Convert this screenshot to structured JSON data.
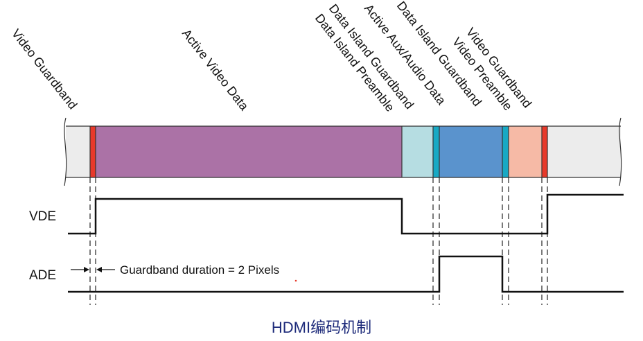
{
  "labels": {
    "video_guardband_left": "Video Guardband",
    "active_video_data": "Active Video Data",
    "data_island_preamble": "Data Island Preamble",
    "data_island_guardband_1": "Data Island Guardband",
    "active_aux_audio_data": "Active Aux/Audio Data",
    "data_island_guardband_2": "Data Island Guardband",
    "video_preamble": "Video Preamble",
    "video_guardband_right": "Video Guardband"
  },
  "signals": {
    "vde": "VDE",
    "ade": "ADE"
  },
  "annotation": "Guardband duration = 2 Pixels",
  "caption": "HDMI编码机制",
  "colors": {
    "guardband": "#e8392a",
    "active_video": "#ab72a6",
    "data_island_preamble": "#b6dde2",
    "data_island_guardband": "#17a9c4",
    "aux_audio": "#5a93cd",
    "video_preamble": "#f6baa6",
    "blank": "#ececec"
  }
}
